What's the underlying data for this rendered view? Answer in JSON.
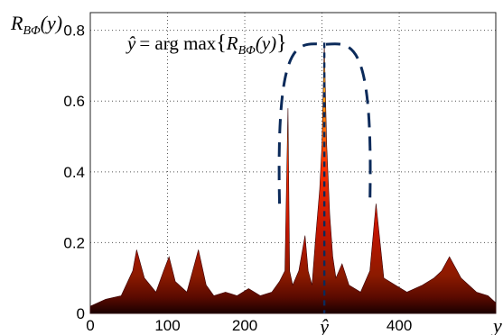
{
  "chart_data": {
    "type": "area",
    "ylabel": {
      "base": "R",
      "sub": "BΦ",
      "arg": "(y)"
    },
    "xlabel": "y",
    "annotation": {
      "lhs": "ŷ",
      "eq": "= arg max",
      "base": "R",
      "sub": "BΦ",
      "arg": "(y)",
      "open": "{",
      "close": "}"
    },
    "peak_label": "ŷ",
    "peak_x": 303,
    "xlim": [
      0,
      525
    ],
    "ylim": [
      0,
      0.85
    ],
    "x_ticks": [
      0,
      100,
      200,
      300,
      400
    ],
    "x_tick_labels": [
      "0",
      "100",
      "200",
      "",
      "400"
    ],
    "y_ticks": [
      0,
      0.2,
      0.4,
      0.6,
      0.8
    ],
    "y_tick_labels": [
      "0",
      "0.2",
      "0.4",
      "0.6",
      "0.8"
    ],
    "grid": true,
    "x": [
      0,
      20,
      40,
      55,
      60,
      70,
      85,
      95,
      102,
      110,
      125,
      135,
      140,
      150,
      160,
      175,
      190,
      205,
      220,
      235,
      245,
      252,
      256,
      258,
      262,
      270,
      278,
      282,
      287,
      292,
      297,
      300,
      303,
      306,
      308,
      310,
      314,
      318,
      326,
      335,
      350,
      362,
      370,
      380,
      395,
      410,
      430,
      445,
      455,
      465,
      480,
      500,
      515,
      525
    ],
    "values": [
      0.02,
      0.04,
      0.05,
      0.12,
      0.18,
      0.1,
      0.06,
      0.12,
      0.16,
      0.09,
      0.06,
      0.14,
      0.18,
      0.08,
      0.05,
      0.06,
      0.05,
      0.07,
      0.05,
      0.06,
      0.09,
      0.12,
      0.58,
      0.12,
      0.08,
      0.12,
      0.22,
      0.12,
      0.08,
      0.22,
      0.35,
      0.48,
      0.76,
      0.48,
      0.38,
      0.28,
      0.16,
      0.1,
      0.14,
      0.08,
      0.06,
      0.12,
      0.31,
      0.1,
      0.08,
      0.06,
      0.08,
      0.1,
      0.12,
      0.16,
      0.1,
      0.06,
      0.05,
      0.03
    ]
  }
}
